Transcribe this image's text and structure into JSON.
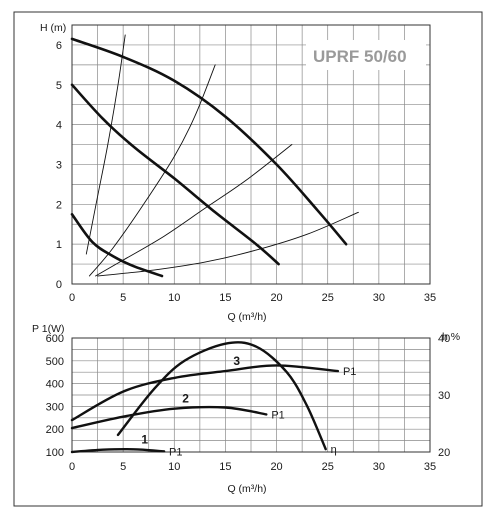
{
  "chart_data": [
    {
      "type": "line",
      "title": "UPRF 50/60",
      "ylabel": "H (m)",
      "xlabel": "Q (m³/h)",
      "xlim": [
        0,
        35
      ],
      "ylim": [
        0,
        6.5
      ],
      "xticks": [
        "0",
        "5",
        "10",
        "15",
        "20",
        "25",
        "30",
        "35"
      ],
      "yticks": [
        "0",
        "1",
        "2",
        "3",
        "4",
        "5",
        "6"
      ],
      "grid": true,
      "series": [
        {
          "name": "",
          "style": "pump-curve",
          "x": [
            0,
            5,
            10,
            15,
            20,
            24,
            26.8
          ],
          "y": [
            6.15,
            5.7,
            5.1,
            4.2,
            3.0,
            1.85,
            1.0
          ]
        },
        {
          "name": "",
          "style": "pump-curve",
          "x": [
            0,
            3,
            6,
            10,
            14,
            18,
            20.2
          ],
          "y": [
            5.0,
            4.15,
            3.45,
            2.65,
            1.8,
            1.0,
            0.5
          ]
        },
        {
          "name": "",
          "style": "pump-curve",
          "x": [
            0,
            2,
            4,
            6,
            8.8
          ],
          "y": [
            1.75,
            1.05,
            0.7,
            0.45,
            0.2
          ]
        },
        {
          "name": "",
          "style": "system-curve",
          "x": [
            1.4,
            2.5,
            3.5,
            4.5,
            5.2
          ],
          "y": [
            0.75,
            2.2,
            3.5,
            5.0,
            6.25
          ]
        },
        {
          "name": "",
          "style": "system-curve",
          "x": [
            1.7,
            4,
            7,
            10,
            12,
            14
          ],
          "y": [
            0.2,
            0.9,
            2.0,
            3.2,
            4.2,
            5.5
          ]
        },
        {
          "name": "",
          "style": "system-curve",
          "x": [
            2.3,
            5,
            9,
            13,
            17,
            21.5
          ],
          "y": [
            0.2,
            0.6,
            1.2,
            1.9,
            2.6,
            3.5
          ]
        },
        {
          "name": "",
          "style": "system-curve",
          "x": [
            2.5,
            8,
            13,
            18,
            23,
            28
          ],
          "y": [
            0.2,
            0.35,
            0.55,
            0.85,
            1.25,
            1.8
          ]
        }
      ]
    },
    {
      "type": "line",
      "ylabel": "P 1(W)",
      "ylabel_right": "h %",
      "xlabel": "Q (m³/h)",
      "xlim": [
        0,
        35
      ],
      "ylim": [
        100,
        600
      ],
      "ylim_right": [
        20,
        40
      ],
      "xticks": [
        "0",
        "5",
        "10",
        "15",
        "20",
        "25",
        "30",
        "35"
      ],
      "yticks": [
        "100",
        "200",
        "300",
        "400",
        "500",
        "600"
      ],
      "yticks_right": [
        "20",
        "30",
        "40"
      ],
      "grid": true,
      "series": [
        {
          "name": "P1",
          "number": "3",
          "axis": "left",
          "x": [
            0,
            5,
            10,
            15,
            20,
            26
          ],
          "y": [
            240,
            365,
            425,
            455,
            480,
            455
          ]
        },
        {
          "name": "P1",
          "number": "2",
          "axis": "left",
          "x": [
            0,
            5,
            10,
            15,
            19
          ],
          "y": [
            205,
            255,
            290,
            295,
            265
          ]
        },
        {
          "name": "P1",
          "number": "1",
          "axis": "left",
          "x": [
            0,
            3,
            6,
            9
          ],
          "y": [
            100,
            110,
            112,
            103
          ]
        },
        {
          "name": "η",
          "axis": "right",
          "x": [
            4.5,
            8,
            11,
            15,
            18,
            21,
            23,
            24.8
          ],
          "y": [
            23.0,
            31.0,
            36.0,
            39.0,
            38.5,
            34.0,
            28.0,
            20.5
          ]
        }
      ]
    }
  ]
}
